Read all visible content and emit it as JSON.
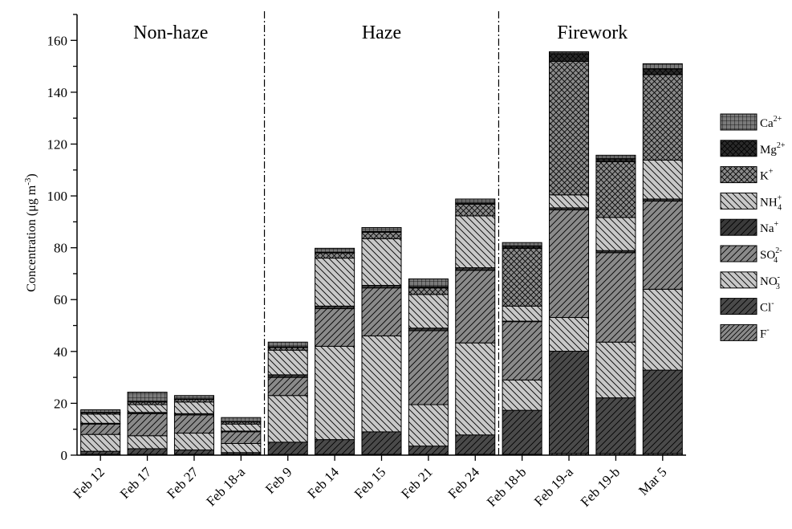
{
  "chart_data": {
    "type": "bar",
    "stacked": true,
    "ylabel": "Concentration (μg m",
    "ylabel_unit_sup": "-3",
    "ylabel_close": ")",
    "ylim": [
      0,
      170
    ],
    "yticks": [
      0,
      20,
      40,
      60,
      80,
      100,
      120,
      140,
      160
    ],
    "categories": [
      "Feb 12",
      "Feb 17",
      "Feb 27",
      "Feb 18-a",
      "Feb 9",
      "Feb 14",
      "Feb 15",
      "Feb 21",
      "Feb 24",
      "Feb 18-b",
      "Feb 19-a",
      "Feb 19-b",
      "Mar 5"
    ],
    "regions": [
      {
        "label": "Non-haze",
        "start": 0,
        "end": 3
      },
      {
        "label": "Haze",
        "start": 4,
        "end": 8
      },
      {
        "label": "Firework",
        "start": 9,
        "end": 12
      }
    ],
    "series": [
      {
        "name": "F",
        "sup": "-",
        "sub": "",
        "color": "#8a8a8a",
        "pattern": "diag-right-fine",
        "values": [
          0.3,
          0.3,
          0.3,
          0.3,
          0.3,
          0.3,
          0.3,
          0.3,
          0.3,
          0.3,
          0.6,
          0.6,
          0.6
        ]
      },
      {
        "name": "Cl",
        "sup": "-",
        "sub": "",
        "color": "#4a4a4a",
        "pattern": "diag-right",
        "values": [
          1.2,
          2.2,
          1.7,
          0.7,
          4.7,
          5.7,
          8.7,
          3.2,
          7.5,
          17.0,
          39.5,
          21.5,
          32.2
        ]
      },
      {
        "name": "NO",
        "sup": "-",
        "sub": "3",
        "color": "#c8c8c8",
        "pattern": "diag-left",
        "values": [
          6.5,
          5.0,
          6.5,
          3.5,
          18.0,
          36.0,
          37.0,
          16.0,
          35.5,
          11.7,
          13.0,
          21.5,
          31.2
        ]
      },
      {
        "name": "SO",
        "sup": "2-",
        "sub": "4",
        "color": "#8a8a8a",
        "pattern": "diag-right",
        "values": [
          4.0,
          8.5,
          7.0,
          4.5,
          7.0,
          14.5,
          18.5,
          28.5,
          28.0,
          22.5,
          41.5,
          34.5,
          34.0
        ]
      },
      {
        "name": "Na",
        "sup": "+",
        "sub": "",
        "color": "#3a3a3a",
        "pattern": "diag-right",
        "values": [
          0.3,
          0.5,
          0.5,
          0.3,
          1.0,
          1.0,
          1.0,
          1.0,
          1.0,
          0.2,
          0.8,
          0.8,
          0.8
        ]
      },
      {
        "name": "NH",
        "sup": "+",
        "sub": "4",
        "color": "#c8c8c8",
        "pattern": "diag-left",
        "values": [
          3.5,
          3.0,
          4.5,
          2.7,
          9.5,
          18.5,
          18.0,
          13.0,
          20.0,
          5.8,
          5.0,
          12.8,
          15.0
        ]
      },
      {
        "name": "K",
        "sup": "+",
        "sub": "",
        "color": "#8a8a8a",
        "pattern": "crosshatch",
        "values": [
          0.5,
          1.0,
          1.0,
          0.8,
          1.0,
          2.0,
          2.5,
          2.5,
          4.5,
          22.3,
          51.5,
          21.5,
          33.0
        ]
      },
      {
        "name": "Mg",
        "sup": "2+",
        "sub": "",
        "color": "#2a2a2a",
        "pattern": "crosshatch",
        "values": [
          0.2,
          0.3,
          0.2,
          0.2,
          0.3,
          0.3,
          0.3,
          0.5,
          0.5,
          0.8,
          3.0,
          1.2,
          2.2
        ]
      },
      {
        "name": "Ca",
        "sup": "2+",
        "sub": "",
        "color": "#7a7a7a",
        "pattern": "grid",
        "values": [
          1.0,
          3.5,
          1.3,
          1.5,
          1.8,
          1.5,
          1.5,
          3.0,
          1.5,
          1.4,
          0.7,
          1.3,
          2.0
        ]
      }
    ]
  }
}
